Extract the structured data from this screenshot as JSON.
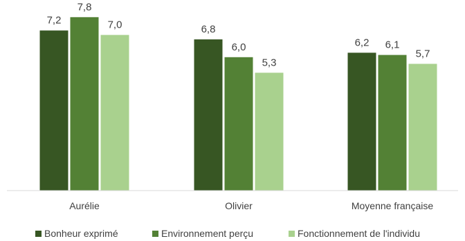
{
  "chart_data": {
    "type": "bar",
    "categories": [
      "Aurélie",
      "Olivier",
      "Moyenne française"
    ],
    "series": [
      {
        "name": "Bonheur exprimé",
        "color": "#375623",
        "values": [
          7.2,
          6.8,
          6.2
        ],
        "labels": [
          "7,2",
          "6,8",
          "6,2"
        ]
      },
      {
        "name": "Environnement perçu",
        "color": "#538135",
        "values": [
          7.8,
          6.0,
          6.1
        ],
        "labels": [
          "7,8",
          "6,0",
          "6,1"
        ]
      },
      {
        "name": "Fonctionnement de l'individu",
        "color": "#a9d18e",
        "values": [
          7.0,
          5.3,
          5.7
        ],
        "labels": [
          "7,0",
          "5,3",
          "5,7"
        ]
      }
    ],
    "legend_position": "bottom",
    "grid": false
  }
}
